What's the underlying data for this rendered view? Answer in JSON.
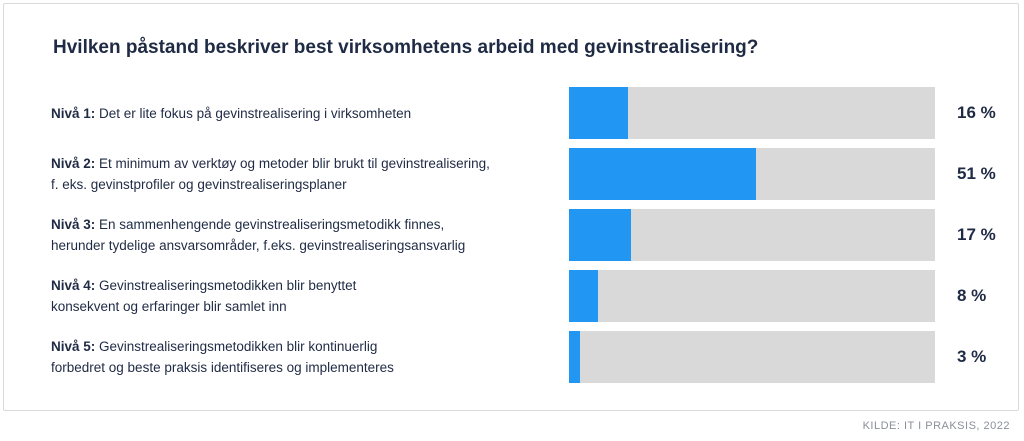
{
  "chart_data": {
    "type": "bar",
    "orientation": "horizontal",
    "title": "Hvilken påstand beskriver best virksomhetens arbeid med gevinstrealisering?",
    "xlim": [
      0,
      100
    ],
    "unit": "%",
    "categories": [
      {
        "level": "Nivå 1:",
        "text": [
          "Det er lite fokus på gevinstrealisering i virksomheten"
        ]
      },
      {
        "level": "Nivå 2:",
        "text": [
          "Et minimum av verktøy og metoder blir brukt til gevinstrealisering,",
          "f. eks. gevinstprofiler og gevinstrealiseringsplaner"
        ]
      },
      {
        "level": "Nivå 3:",
        "text": [
          "En sammenhengende gevinstrealiseringsmetodikk finnes,",
          "herunder tydelige ansvarsområder, f.eks. gevinstrealiseringsansvarlig"
        ]
      },
      {
        "level": "Nivå 4:",
        "text": [
          "Gevinstrealiseringsmetodikken blir benyttet",
          "konsekvent og erfaringer blir samlet inn"
        ]
      },
      {
        "level": "Nivå 5:",
        "text": [
          "Gevinstrealiseringsmetodikken blir kontinuerlig",
          "forbedret og beste praksis identifiseres og implementeres"
        ]
      }
    ],
    "values": [
      16,
      51,
      17,
      8,
      3
    ],
    "value_labels": [
      "16 %",
      "51 %",
      "17 %",
      "8 %",
      "3 %"
    ],
    "colors": {
      "bar": "#2196f3",
      "track": "#d9d9d9",
      "text": "#1f2a44"
    }
  },
  "source": "KILDE: IT I PRAKSIS, 2022"
}
